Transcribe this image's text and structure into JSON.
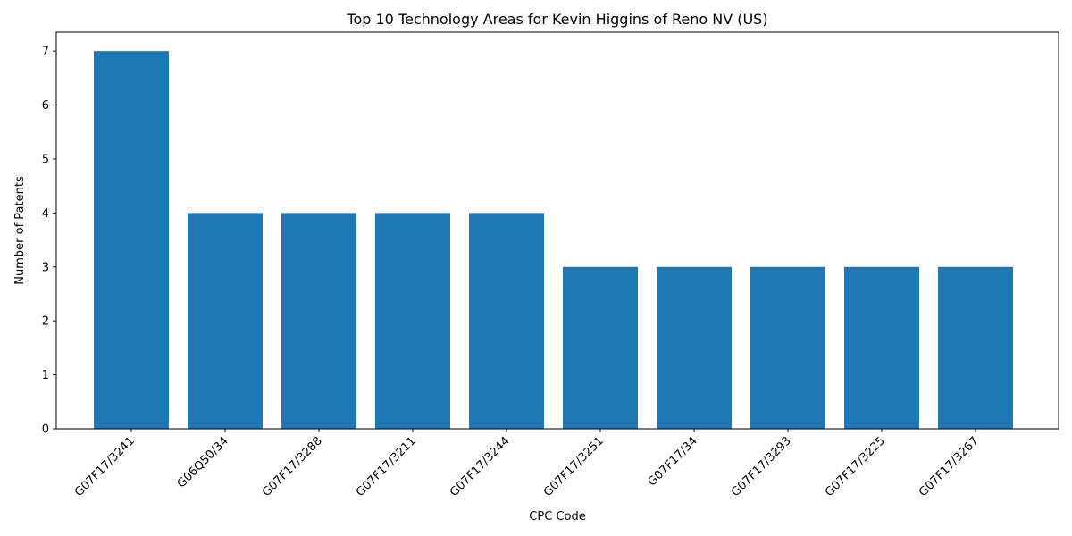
{
  "chart_data": {
    "type": "bar",
    "title": "Top 10 Technology Areas for Kevin Higgins of Reno NV (US)",
    "xlabel": "CPC Code",
    "ylabel": "Number of Patents",
    "categories": [
      "G07F17/3241",
      "G06Q50/34",
      "G07F17/3288",
      "G07F17/3211",
      "G07F17/3244",
      "G07F17/3251",
      "G07F17/34",
      "G07F17/3293",
      "G07F17/3225",
      "G07F17/3267"
    ],
    "values": [
      7,
      4,
      4,
      4,
      4,
      3,
      3,
      3,
      3,
      3
    ],
    "ylim": [
      0,
      7.35
    ],
    "yticks": [
      0,
      1,
      2,
      3,
      4,
      5,
      6,
      7
    ],
    "bar_color": "#1f77b4",
    "grid": false,
    "legend": "none"
  }
}
